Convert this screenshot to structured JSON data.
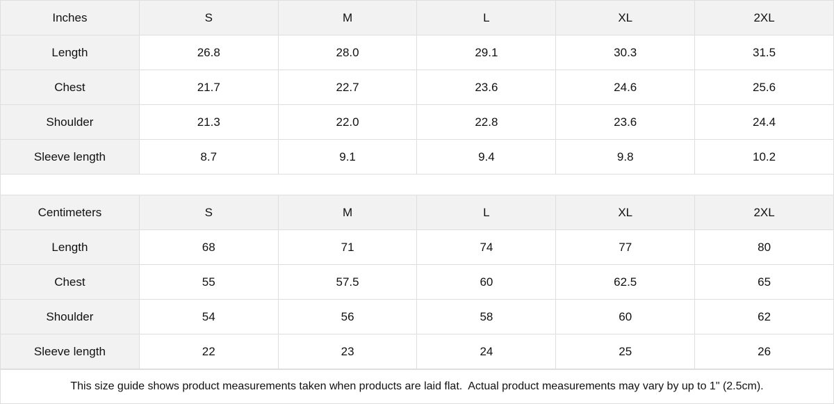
{
  "tables": [
    {
      "unit": "Inches",
      "sizes": [
        "S",
        "M",
        "L",
        "XL",
        "2XL"
      ],
      "rows": [
        {
          "label": "Length",
          "values": [
            "26.8",
            "28.0",
            "29.1",
            "30.3",
            "31.5"
          ]
        },
        {
          "label": "Chest",
          "values": [
            "21.7",
            "22.7",
            "23.6",
            "24.6",
            "25.6"
          ]
        },
        {
          "label": "Shoulder",
          "values": [
            "21.3",
            "22.0",
            "22.8",
            "23.6",
            "24.4"
          ]
        },
        {
          "label": "Sleeve length",
          "values": [
            "8.7",
            "9.1",
            "9.4",
            "9.8",
            "10.2"
          ]
        }
      ]
    },
    {
      "unit": "Centimeters",
      "sizes": [
        "S",
        "M",
        "L",
        "XL",
        "2XL"
      ],
      "rows": [
        {
          "label": "Length",
          "values": [
            "68",
            "71",
            "74",
            "77",
            "80"
          ]
        },
        {
          "label": "Chest",
          "values": [
            "55",
            "57.5",
            "60",
            "62.5",
            "65"
          ]
        },
        {
          "label": "Shoulder",
          "values": [
            "54",
            "56",
            "58",
            "60",
            "62"
          ]
        },
        {
          "label": "Sleeve length",
          "values": [
            "22",
            "23",
            "24",
            "25",
            "26"
          ]
        }
      ]
    }
  ],
  "note": "This size guide shows product measurements taken when products are laid flat.  Actual product measurements may vary by up to 1\" (2.5cm).",
  "colors": {
    "header_bg": "#f2f2f2",
    "border": "#dedede",
    "text": "#111111"
  }
}
